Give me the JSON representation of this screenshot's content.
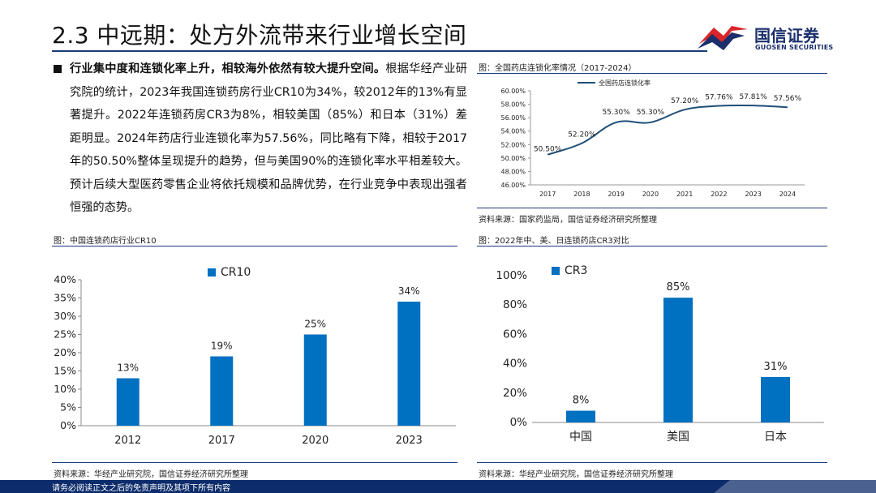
{
  "slide": {
    "title": "2.3 中远期：处方外流带来行业增长空间",
    "logo_cn": "国信证券",
    "logo_en": "GUOSEN SECURITIES",
    "paragraph_bold": "行业集中度和连锁化率上升，相较海外依然有较大提升空间。",
    "paragraph_rest": "根据华经产业研究院的统计，2023年我国连锁药房行业CR10为34%，较2012年的13%有显著提升。2022年连锁药房CR3为8%，相较美国（85%）和日本（31%）差距明显。2024年药店行业连锁化率为57.56%，同比略有下降，相较于2017年的50.50%整体呈现提升的趋势，但与美国90%的连锁化率水平相差较大。预计后续大型医药零售企业将依托规模和品牌优势，在行业竞争中表现出强者恒强的态势。",
    "footer": "请务必阅读正文之后的免责声明及其项下所有内容",
    "colors": {
      "navy": "#1a3a7a",
      "bar_blue": "#0070c0",
      "line_blue": "#1f4e79",
      "logo_red": "#d9252a"
    }
  },
  "captions": {
    "chain_rate": "图：全国药店连锁化率情况（2017-2024）",
    "cr10": "图：中国连锁药店行业CR10",
    "cr3": "图：2022年中、美、日连锁药店CR3对比"
  },
  "sources": {
    "chain_rate": "资料来源：国家药监局，国信证券经济研究所整理",
    "cr10": "资料来源：华经产业研究院，国信证券经济研究所整理",
    "cr3": "资料来源：华经产业研究院，国信证券经济研究所整理"
  },
  "chart_data": [
    {
      "id": "chain_rate",
      "type": "line",
      "title": "全国药店连锁化率情况（2017-2024）",
      "legend": "全国药店连锁化率",
      "x": [
        "2017",
        "2018",
        "2019",
        "2020",
        "2021",
        "2022",
        "2023",
        "2024"
      ],
      "values": [
        50.5,
        52.2,
        55.3,
        55.3,
        57.2,
        57.76,
        57.81,
        57.56
      ],
      "labels": [
        "50.50%",
        "52.20%",
        "55.30%",
        "55.30%",
        "57.20%",
        "57.76%",
        "57.81%",
        "57.56%"
      ],
      "ylim": [
        46,
        60
      ],
      "yticks": [
        46,
        48,
        50,
        52,
        54,
        56,
        58,
        60
      ],
      "ytick_labels": [
        "46.00%",
        "48.00%",
        "50.00%",
        "52.00%",
        "54.00%",
        "56.00%",
        "58.00%",
        "60.00%"
      ],
      "xlabel": "",
      "ylabel": ""
    },
    {
      "id": "cr10",
      "type": "bar",
      "title": "中国连锁药店行业CR10",
      "legend": "CR10",
      "categories": [
        "2012",
        "2017",
        "2020",
        "2023"
      ],
      "values": [
        13,
        19,
        25,
        34
      ],
      "labels": [
        "13%",
        "19%",
        "25%",
        "34%"
      ],
      "ylim": [
        0,
        40
      ],
      "yticks": [
        0,
        5,
        10,
        15,
        20,
        25,
        30,
        35,
        40
      ],
      "ytick_labels": [
        "0%",
        "5%",
        "10%",
        "15%",
        "20%",
        "25%",
        "30%",
        "35%",
        "40%"
      ],
      "xlabel": "",
      "ylabel": ""
    },
    {
      "id": "cr3",
      "type": "bar",
      "title": "2022年中、美、日连锁药店CR3对比",
      "legend": "CR3",
      "categories": [
        "中国",
        "美国",
        "日本"
      ],
      "values": [
        8,
        85,
        31
      ],
      "labels": [
        "8%",
        "85%",
        "31%"
      ],
      "ylim": [
        0,
        100
      ],
      "yticks": [
        0,
        20,
        40,
        60,
        80,
        100
      ],
      "ytick_labels": [
        "0%",
        "20%",
        "40%",
        "60%",
        "80%",
        "100%"
      ],
      "xlabel": "",
      "ylabel": ""
    }
  ]
}
